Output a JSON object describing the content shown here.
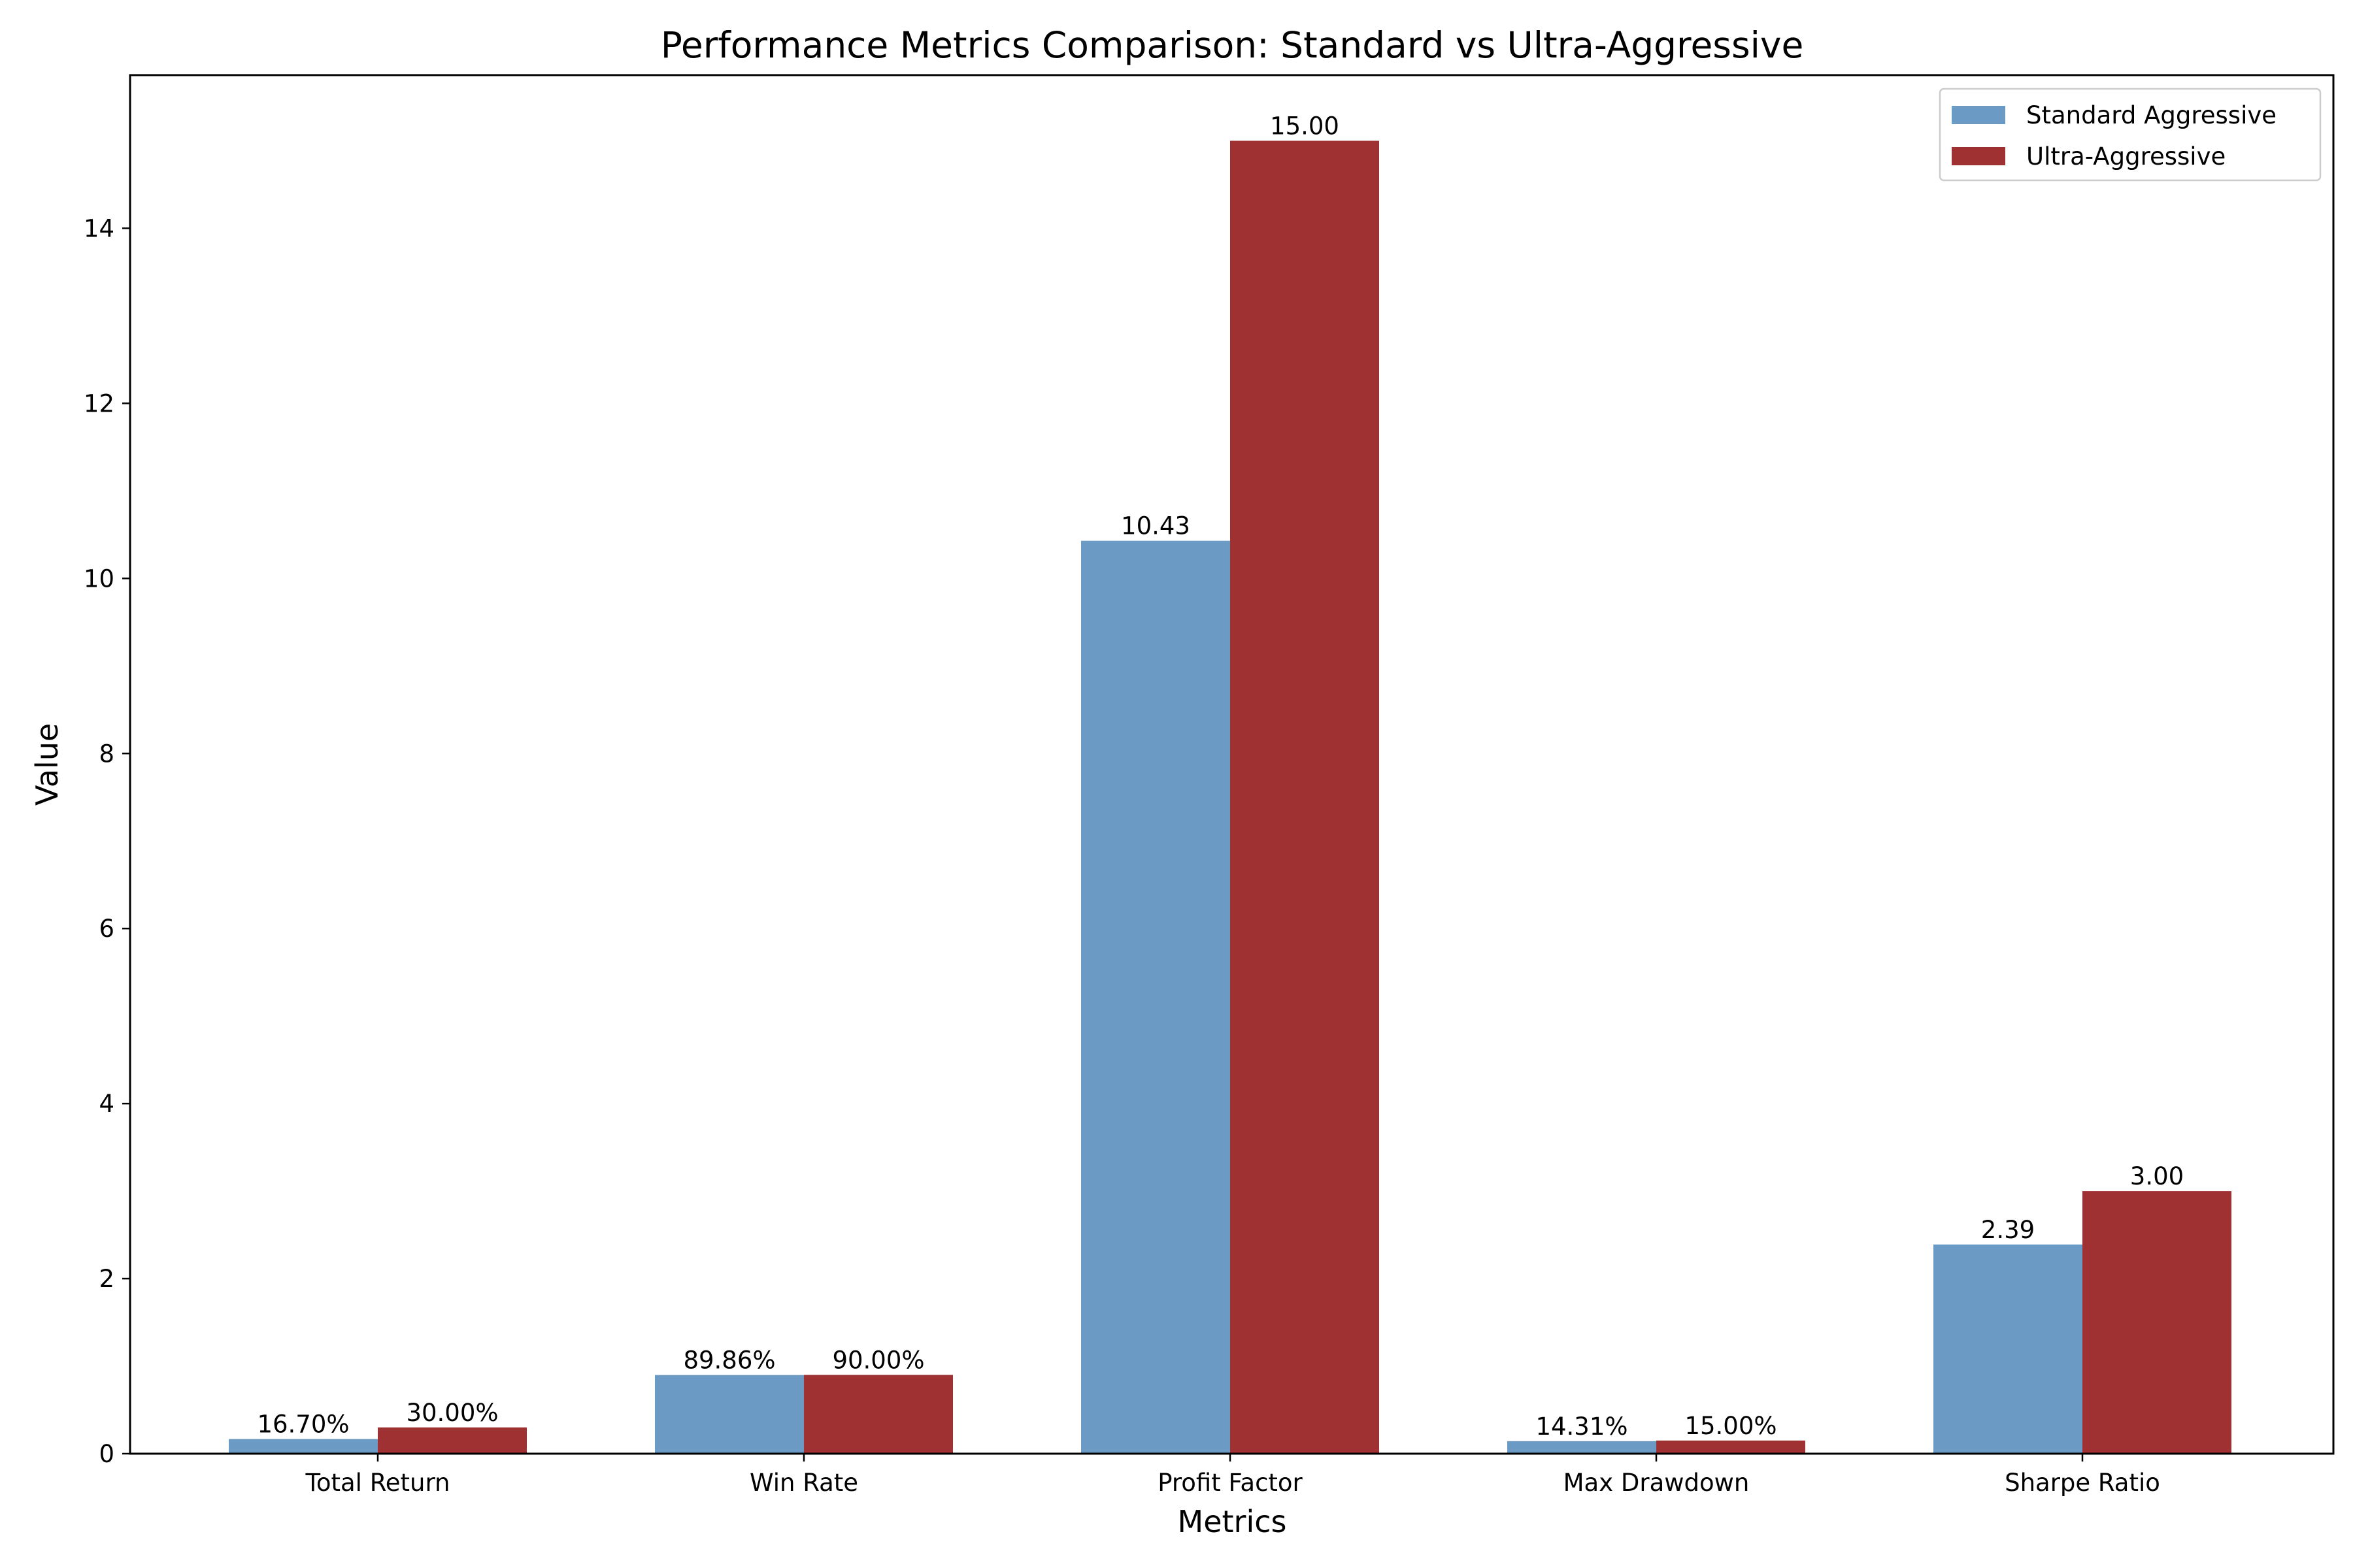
{
  "chart_data": {
    "type": "bar",
    "title": "Performance Metrics Comparison: Standard vs Ultra-Aggressive",
    "xlabel": "Metrics",
    "ylabel": "Value",
    "categories": [
      "Total Return",
      "Win Rate",
      "Profit Factor",
      "Max Drawdown",
      "Sharpe Ratio"
    ],
    "ylim": [
      0,
      15.75
    ],
    "yticks": [
      0,
      2,
      4,
      6,
      8,
      10,
      12,
      14
    ],
    "grid": false,
    "legend_position": "top-right",
    "series": [
      {
        "name": "Standard Aggressive",
        "color": "#6b9bc4",
        "values": [
          0.167,
          0.8986,
          10.43,
          0.1431,
          2.39
        ],
        "labels": [
          "16.70%",
          "89.86%",
          "10.43",
          "14.31%",
          "2.39"
        ]
      },
      {
        "name": "Ultra-Aggressive",
        "color": "#a03133",
        "values": [
          0.3,
          0.9,
          15.0,
          0.15,
          3.0
        ],
        "labels": [
          "30.00%",
          "90.00%",
          "15.00",
          "15.00%",
          "3.00"
        ]
      }
    ]
  }
}
